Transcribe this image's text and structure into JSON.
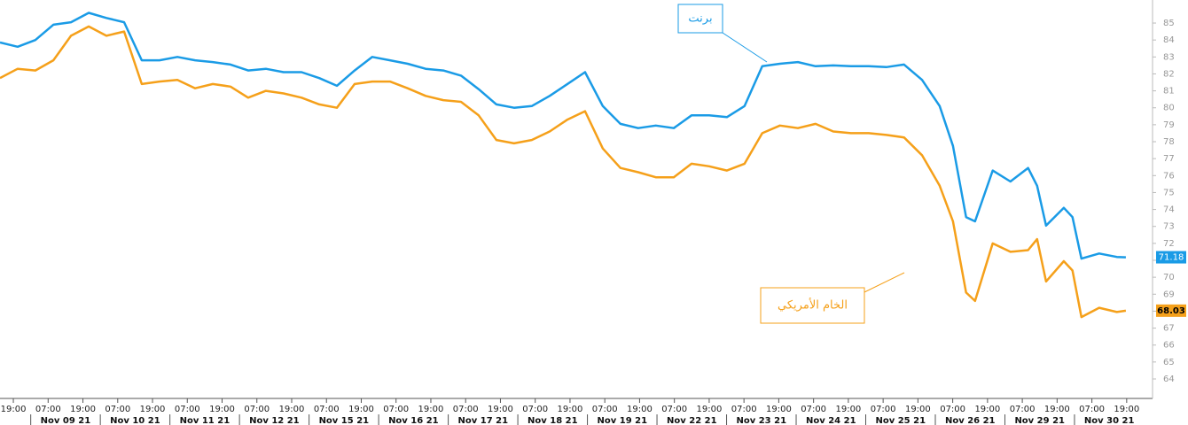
{
  "chart_data": {
    "type": "line",
    "xlim": [
      -4.6,
      392
    ],
    "ylim": [
      62.85,
      86.36
    ],
    "yticks": [
      64,
      65,
      66,
      67,
      68,
      69,
      70,
      71,
      72,
      73,
      74,
      75,
      76,
      77,
      78,
      79,
      80,
      81,
      82,
      83,
      84,
      85
    ],
    "xticks": [
      {
        "value": 0,
        "label": "19:00"
      },
      {
        "value": 12,
        "label": "07:00"
      },
      {
        "value": 24,
        "label": "19:00"
      },
      {
        "value": 36,
        "label": "07:00"
      },
      {
        "value": 48,
        "label": "19:00"
      },
      {
        "value": 60,
        "label": "07:00"
      },
      {
        "value": 72,
        "label": "19:00"
      },
      {
        "value": 84,
        "label": "07:00"
      },
      {
        "value": 96,
        "label": "19:00"
      },
      {
        "value": 108,
        "label": "07:00"
      },
      {
        "value": 120,
        "label": "19:00"
      },
      {
        "value": 132,
        "label": "07:00"
      },
      {
        "value": 144,
        "label": "19:00"
      },
      {
        "value": 156,
        "label": "07:00"
      },
      {
        "value": 168,
        "label": "19:00"
      },
      {
        "value": 180,
        "label": "07:00"
      },
      {
        "value": 192,
        "label": "19:00"
      },
      {
        "value": 204,
        "label": "07:00"
      },
      {
        "value": 216,
        "label": "19:00"
      },
      {
        "value": 228,
        "label": "07:00"
      },
      {
        "value": 240,
        "label": "19:00"
      },
      {
        "value": 252,
        "label": "07:00"
      },
      {
        "value": 264,
        "label": "19:00"
      },
      {
        "value": 276,
        "label": "07:00"
      },
      {
        "value": 288,
        "label": "19:00"
      },
      {
        "value": 300,
        "label": "07:00"
      },
      {
        "value": 312,
        "label": "19:00"
      },
      {
        "value": 324,
        "label": "07:00"
      },
      {
        "value": 336,
        "label": "19:00"
      },
      {
        "value": 348,
        "label": "07:00"
      },
      {
        "value": 360,
        "label": "19:00"
      },
      {
        "value": 372,
        "label": "07:00"
      },
      {
        "value": 384,
        "label": "19:00"
      }
    ],
    "date_labels": [
      "Nov 09 21",
      "Nov 10 21",
      "Nov 11 21",
      "Nov 12 21",
      "Nov 15 21",
      "Nov 16 21",
      "Nov 17 21",
      "Nov 18 21",
      "Nov 19 21",
      "Nov 22 21",
      "Nov 23 21",
      "Nov 24 21",
      "Nov 25 21",
      "Nov 26 21",
      "Nov 29 21",
      "Nov 30 21"
    ],
    "x": [
      -4.6,
      1.5,
      7.6,
      13.8,
      19.9,
      26.0,
      32.1,
      38.2,
      44.3,
      50.4,
      56.6,
      62.7,
      68.8,
      74.9,
      81.0,
      87.1,
      93.2,
      99.4,
      105.5,
      111.6,
      117.7,
      123.8,
      129.9,
      136.0,
      142.2,
      148.3,
      154.4,
      160.5,
      166.6,
      172.7,
      178.8,
      185.0,
      191.1,
      197.2,
      203.3,
      209.4,
      215.5,
      221.6,
      227.8,
      233.9,
      240.0,
      246.1,
      252.2,
      258.3,
      264.4,
      270.6,
      276.7,
      282.8,
      288.9,
      295.0,
      301.1,
      307.2,
      313.4,
      319.5,
      324.1,
      328.6,
      331.7,
      337.8,
      343.9,
      350.0,
      353.1,
      356.2,
      362.3,
      365.3,
      368.4,
      374.5,
      380.6,
      383.7
    ],
    "series": [
      {
        "name": "برنت",
        "color": "#1a9be6",
        "values": [
          83.85,
          83.6,
          84.0,
          84.9,
          85.05,
          85.6,
          85.3,
          85.05,
          82.8,
          82.8,
          83.0,
          82.8,
          82.7,
          82.55,
          82.2,
          82.3,
          82.1,
          82.1,
          81.75,
          81.3,
          82.2,
          83.0,
          82.8,
          82.6,
          82.3,
          82.2,
          81.9,
          81.1,
          80.2,
          80.0,
          80.1,
          80.7,
          81.4,
          82.1,
          80.1,
          79.05,
          78.8,
          78.95,
          78.8,
          79.55,
          79.55,
          79.45,
          80.1,
          82.45,
          82.6,
          82.7,
          82.45,
          82.5,
          82.45,
          82.45,
          82.4,
          82.55,
          81.65,
          80.1,
          77.75,
          73.55,
          73.3,
          76.3,
          75.65,
          76.45,
          75.4,
          73.05,
          74.1,
          73.55,
          71.1,
          71.4,
          71.2,
          71.18
        ]
      },
      {
        "name": "الخام الأمريكي",
        "color": "#f5a01a",
        "values": [
          81.75,
          82.3,
          82.2,
          82.8,
          84.25,
          84.8,
          84.25,
          84.5,
          81.4,
          81.55,
          81.65,
          81.15,
          81.4,
          81.25,
          80.6,
          81.0,
          80.85,
          80.6,
          80.2,
          80.0,
          81.4,
          81.55,
          81.55,
          81.15,
          80.7,
          80.45,
          80.35,
          79.55,
          78.1,
          77.9,
          78.1,
          78.6,
          79.3,
          79.8,
          77.6,
          76.45,
          76.2,
          75.9,
          75.9,
          76.7,
          76.55,
          76.3,
          76.7,
          78.5,
          78.95,
          78.8,
          79.05,
          78.6,
          78.5,
          78.5,
          78.4,
          78.25,
          77.2,
          75.4,
          73.3,
          69.1,
          68.6,
          72.0,
          71.5,
          71.6,
          72.25,
          69.75,
          70.95,
          70.4,
          67.65,
          68.2,
          67.95,
          68.03
        ]
      }
    ]
  }
}
